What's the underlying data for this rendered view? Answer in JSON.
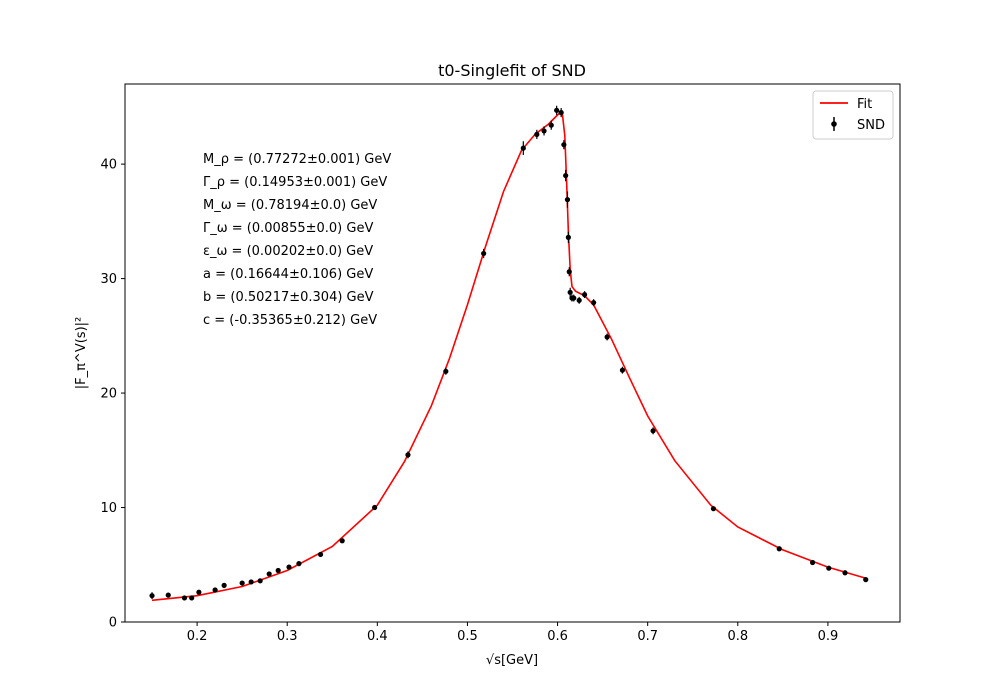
{
  "chart_data": {
    "type": "scatter",
    "title": "t0-Singlefit of SND",
    "xlabel": "√s[GeV]",
    "ylabel": "|F_π^V(s)|²",
    "xlim": [
      0.12,
      0.98
    ],
    "ylim": [
      0,
      47
    ],
    "xticks": [
      0.2,
      0.3,
      0.4,
      0.5,
      0.6,
      0.7,
      0.8,
      0.9
    ],
    "xtick_labels": [
      "0.2",
      "0.3",
      "0.4",
      "0.5",
      "0.6",
      "0.7",
      "0.8",
      "0.9"
    ],
    "yticks": [
      0,
      10,
      20,
      30,
      40
    ],
    "ytick_labels": [
      "0",
      "10",
      "20",
      "30",
      "40"
    ],
    "grid": false,
    "legend_position": "top-right",
    "legend": [
      {
        "label": "Fit",
        "kind": "line",
        "color": "#ff0000"
      },
      {
        "label": "SND",
        "kind": "errorbar-marker",
        "color": "#000000"
      }
    ],
    "annotations": [
      "M_ρ = (0.77272±0.001) GeV",
      "Γ_ρ = (0.14953±0.001) GeV",
      "M_ω = (0.78194±0.0) GeV",
      "Γ_ω = (0.00855±0.0) GeV",
      "ε_ω = (0.00202±0.0) GeV",
      "a = (0.16644±0.106) GeV",
      "b = (0.50217±0.304) GeV",
      "c = (-0.35365±0.212) GeV"
    ],
    "series": [
      {
        "name": "SND",
        "kind": "points",
        "color": "#000000",
        "x": [
          0.15,
          0.168,
          0.186,
          0.194,
          0.202,
          0.22,
          0.23,
          0.25,
          0.26,
          0.27,
          0.28,
          0.29,
          0.302,
          0.313,
          0.337,
          0.361,
          0.397,
          0.434,
          0.476,
          0.518,
          0.562,
          0.577,
          0.585,
          0.593,
          0.599,
          0.604,
          0.607,
          0.609,
          0.611,
          0.612,
          0.613,
          0.614,
          0.616,
          0.618,
          0.624,
          0.63,
          0.64,
          0.655,
          0.672,
          0.706,
          0.773,
          0.846,
          0.883,
          0.901,
          0.919,
          0.942
        ],
        "y": [
          2.3,
          2.35,
          2.1,
          2.1,
          2.6,
          2.8,
          3.2,
          3.4,
          3.5,
          3.6,
          4.2,
          4.5,
          4.8,
          5.1,
          5.9,
          7.1,
          10.0,
          14.6,
          21.9,
          32.2,
          41.4,
          42.6,
          42.9,
          43.4,
          44.7,
          44.5,
          41.7,
          39.0,
          36.9,
          33.6,
          30.6,
          28.8,
          28.3,
          28.3,
          28.1,
          28.6,
          27.9,
          24.9,
          22.0,
          16.7,
          9.9,
          6.4,
          5.2,
          4.7,
          4.3,
          3.7
        ],
        "yerr": [
          0.3,
          0.2,
          0.2,
          0.2,
          0.2,
          0.2,
          0.2,
          0.2,
          0.2,
          0.2,
          0.2,
          0.2,
          0.2,
          0.2,
          0.2,
          0.2,
          0.2,
          0.3,
          0.3,
          0.4,
          0.6,
          0.4,
          0.4,
          0.4,
          0.4,
          0.4,
          0.4,
          0.5,
          0.7,
          0.5,
          0.4,
          0.4,
          0.3,
          0.3,
          0.3,
          0.3,
          0.3,
          0.3,
          0.3,
          0.3,
          0.2,
          0.2,
          0.2,
          0.2,
          0.2,
          0.2
        ]
      },
      {
        "name": "Fit",
        "kind": "line",
        "color": "#ff0000",
        "x": [
          0.15,
          0.2,
          0.25,
          0.3,
          0.35,
          0.4,
          0.43,
          0.46,
          0.48,
          0.5,
          0.52,
          0.54,
          0.56,
          0.575,
          0.59,
          0.6,
          0.605,
          0.608,
          0.61,
          0.612,
          0.614,
          0.616,
          0.62,
          0.63,
          0.64,
          0.66,
          0.68,
          0.7,
          0.73,
          0.77,
          0.8,
          0.85,
          0.9,
          0.943
        ],
        "y": [
          1.9,
          2.3,
          3.1,
          4.5,
          6.6,
          10.2,
          14.0,
          18.9,
          23.0,
          27.7,
          32.8,
          37.6,
          41.2,
          42.6,
          43.5,
          44.3,
          44.6,
          42.5,
          38.5,
          34.0,
          30.8,
          29.3,
          28.9,
          28.5,
          27.7,
          24.7,
          21.3,
          18.0,
          14.1,
          10.2,
          8.3,
          6.3,
          4.8,
          3.8
        ]
      }
    ]
  }
}
